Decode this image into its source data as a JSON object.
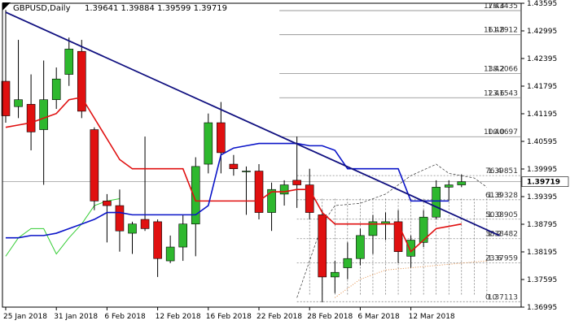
{
  "header": {
    "symbol": "GBPUSD,Daily",
    "ohlc": "1.39641 1.39884 1.39599 1.39719"
  },
  "chart_data": {
    "type": "candlestick",
    "ylim": [
      1.36995,
      1.43595
    ],
    "last_price": 1.39719,
    "last_price_label": "1.39719",
    "y_ticks": [
      "1.43595",
      "1.42995",
      "1.42395",
      "1.41795",
      "1.41195",
      "1.40595",
      "1.39995",
      "1.39395",
      "1.38795",
      "1.38195",
      "1.37595",
      "1.36995"
    ],
    "x_labels": [
      {
        "i": 0,
        "label": "25 Jan 2018"
      },
      {
        "i": 4,
        "label": "31 Jan 2018"
      },
      {
        "i": 8,
        "label": "6 Feb 2018"
      },
      {
        "i": 12,
        "label": "12 Feb 2018"
      },
      {
        "i": 16,
        "label": "16 Feb 2018"
      },
      {
        "i": 20,
        "label": "22 Feb 2018"
      },
      {
        "i": 24,
        "label": "28 Feb 2018"
      },
      {
        "i": 28,
        "label": "6 Mar 2018"
      },
      {
        "i": 32,
        "label": "12 Mar 2018"
      }
    ],
    "candles": [
      {
        "o": 1.419,
        "h": 1.4345,
        "l": 1.41,
        "c": 1.4115
      },
      {
        "o": 1.4135,
        "h": 1.428,
        "l": 1.411,
        "c": 1.415
      },
      {
        "o": 1.414,
        "h": 1.4205,
        "l": 1.404,
        "c": 1.408
      },
      {
        "o": 1.4085,
        "h": 1.4235,
        "l": 1.3965,
        "c": 1.415
      },
      {
        "o": 1.415,
        "h": 1.422,
        "l": 1.413,
        "c": 1.4195
      },
      {
        "o": 1.4205,
        "h": 1.4285,
        "l": 1.418,
        "c": 1.426
      },
      {
        "o": 1.4255,
        "h": 1.428,
        "l": 1.411,
        "c": 1.4125
      },
      {
        "o": 1.4085,
        "h": 1.409,
        "l": 1.391,
        "c": 1.393
      },
      {
        "o": 1.393,
        "h": 1.3945,
        "l": 1.384,
        "c": 1.392
      },
      {
        "o": 1.392,
        "h": 1.3955,
        "l": 1.382,
        "c": 1.3865
      },
      {
        "o": 1.386,
        "h": 1.3885,
        "l": 1.3815,
        "c": 1.388
      },
      {
        "o": 1.389,
        "h": 1.407,
        "l": 1.3865,
        "c": 1.387
      },
      {
        "o": 1.3885,
        "h": 1.389,
        "l": 1.3765,
        "c": 1.3805
      },
      {
        "o": 1.38,
        "h": 1.3855,
        "l": 1.3795,
        "c": 1.383
      },
      {
        "o": 1.383,
        "h": 1.39,
        "l": 1.38,
        "c": 1.388
      },
      {
        "o": 1.388,
        "h": 1.4025,
        "l": 1.381,
        "c": 1.4005
      },
      {
        "o": 1.401,
        "h": 1.412,
        "l": 1.399,
        "c": 1.41
      },
      {
        "o": 1.41,
        "h": 1.4145,
        "l": 1.399,
        "c": 1.4035
      },
      {
        "o": 1.401,
        "h": 1.403,
        "l": 1.3985,
        "c": 1.4
      },
      {
        "o": 1.3995,
        "h": 1.4005,
        "l": 1.39,
        "c": 1.3995
      },
      {
        "o": 1.3995,
        "h": 1.401,
        "l": 1.389,
        "c": 1.3905
      },
      {
        "o": 1.3905,
        "h": 1.397,
        "l": 1.3865,
        "c": 1.3955
      },
      {
        "o": 1.3945,
        "h": 1.3975,
        "l": 1.392,
        "c": 1.3965
      },
      {
        "o": 1.3975,
        "h": 1.407,
        "l": 1.3915,
        "c": 1.3965
      },
      {
        "o": 1.3965,
        "h": 1.4,
        "l": 1.389,
        "c": 1.3905
      },
      {
        "o": 1.39,
        "h": 1.391,
        "l": 1.371,
        "c": 1.3765
      },
      {
        "o": 1.3765,
        "h": 1.38,
        "l": 1.373,
        "c": 1.3775
      },
      {
        "o": 1.3785,
        "h": 1.384,
        "l": 1.376,
        "c": 1.3805
      },
      {
        "o": 1.3805,
        "h": 1.387,
        "l": 1.379,
        "c": 1.3855
      },
      {
        "o": 1.3855,
        "h": 1.39,
        "l": 1.3815,
        "c": 1.3885
      },
      {
        "o": 1.388,
        "h": 1.3905,
        "l": 1.3845,
        "c": 1.3885
      },
      {
        "o": 1.3885,
        "h": 1.391,
        "l": 1.3795,
        "c": 1.382
      },
      {
        "o": 1.381,
        "h": 1.3855,
        "l": 1.3785,
        "c": 1.3845
      },
      {
        "o": 1.384,
        "h": 1.391,
        "l": 1.383,
        "c": 1.3895
      },
      {
        "o": 1.3895,
        "h": 1.3975,
        "l": 1.389,
        "c": 1.396
      },
      {
        "o": 1.396,
        "h": 1.3975,
        "l": 1.393,
        "c": 1.3965
      },
      {
        "o": 1.3965,
        "h": 1.3988,
        "l": 1.396,
        "c": 1.3972
      }
    ],
    "fib_levels": [
      {
        "ratio": "0.0",
        "price": 1.37113,
        "label": "1.37113"
      },
      {
        "ratio": "23.6",
        "price": 1.37959,
        "label": "1.37959"
      },
      {
        "ratio": "38.2",
        "price": 1.38482,
        "label": "1.38482"
      },
      {
        "ratio": "50.0",
        "price": 1.38905,
        "label": "1.38905"
      },
      {
        "ratio": "61.8",
        "price": 1.39328,
        "label": "1.39328"
      },
      {
        "ratio": "76.4",
        "price": 1.39851,
        "label": "1.39851"
      },
      {
        "ratio": "100.0",
        "price": 1.40697,
        "label": "1.40697"
      },
      {
        "ratio": "123.6",
        "price": 1.41543,
        "label": "1.41543"
      },
      {
        "ratio": "138.2",
        "price": 1.42066,
        "label": "1.42066"
      },
      {
        "ratio": "161.8",
        "price": 1.42912,
        "label": "1.42912"
      },
      {
        "ratio": "176.4",
        "price": 1.43435,
        "label": "1.43435"
      }
    ],
    "trendline": {
      "from": {
        "i": 0,
        "price": 1.434
      },
      "to": {
        "i": 39,
        "price": 1.3855
      }
    },
    "red_ma": [
      1.409,
      1.4095,
      1.41,
      1.411,
      1.412,
      1.415,
      1.4155,
      1.411,
      1.4065,
      1.402,
      1.4,
      1.4,
      1.4,
      1.4,
      1.4,
      1.393,
      1.393,
      1.393,
      1.393,
      1.393,
      1.393,
      1.395,
      1.395,
      1.3955,
      1.3955,
      1.3905,
      1.388,
      1.388,
      1.388,
      1.388,
      1.388,
      1.388,
      1.382,
      1.3845,
      1.387,
      1.3875,
      1.388
    ],
    "blue_ma": [
      1.385,
      1.385,
      1.3855,
      1.3855,
      1.386,
      1.387,
      1.388,
      1.389,
      1.3905,
      1.3905,
      1.39,
      1.39,
      1.39,
      1.39,
      1.39,
      1.39,
      1.392,
      1.403,
      1.4045,
      1.405,
      1.4055,
      1.4055,
      1.4055,
      1.4055,
      1.405,
      1.405,
      1.404,
      1.4,
      1.4,
      1.4,
      1.4,
      1.4,
      1.393,
      1.393,
      1.393,
      1.393
    ],
    "colors": {
      "bull": "#2eb82e",
      "bear": "#e01010",
      "red_ma": "#e01010",
      "blue_ma": "#0a14c8",
      "trend": "#101080",
      "green_line": "#33cc33",
      "orange_dots": "#e08030",
      "fib": "#888888"
    }
  }
}
